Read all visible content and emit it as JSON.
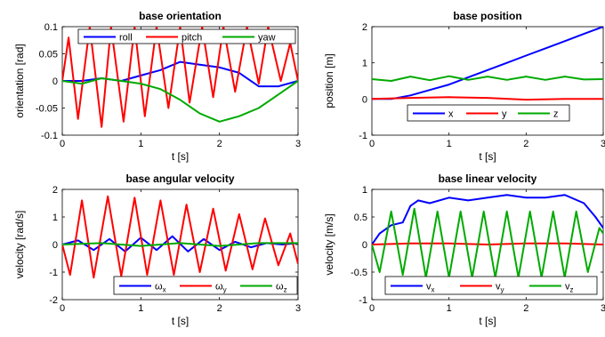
{
  "chart_data": [
    {
      "type": "line",
      "title": "base orientation",
      "xlabel": "t [s]",
      "ylabel": "orientation [rad]",
      "xlim": [
        0,
        3
      ],
      "ylim": [
        -0.1,
        0.1
      ],
      "xticks": [
        0,
        1,
        2,
        3
      ],
      "xtick_labels": [
        "0",
        "1",
        "2",
        "3"
      ],
      "yticks": [
        -0.1,
        -0.05,
        0,
        0.05,
        0.1
      ],
      "ytick_labels": [
        "-0.1",
        "-0.05",
        "0",
        "0.05",
        "0.1"
      ],
      "legend": "top",
      "grid": false,
      "series": [
        {
          "name": "roll",
          "color": "#0000ff",
          "x": [
            0,
            0.25,
            0.5,
            0.75,
            1.0,
            1.25,
            1.5,
            1.75,
            2.0,
            2.25,
            2.5,
            2.75,
            3.0
          ],
          "y": [
            0,
            0.0,
            0.005,
            0.0,
            0.01,
            0.02,
            0.035,
            0.03,
            0.025,
            0.015,
            -0.01,
            -0.01,
            0
          ]
        },
        {
          "name": "pitch",
          "color": "#ff0000",
          "x": [
            0,
            0.08,
            0.2,
            0.35,
            0.5,
            0.62,
            0.78,
            0.92,
            1.05,
            1.2,
            1.35,
            1.5,
            1.62,
            1.78,
            1.92,
            2.05,
            2.2,
            2.35,
            2.5,
            2.62,
            2.78,
            2.9,
            3.0
          ],
          "y": [
            0,
            0.08,
            -0.07,
            0.1,
            -0.085,
            0.1,
            -0.075,
            0.1,
            -0.065,
            0.1,
            -0.05,
            0.1,
            -0.04,
            0.1,
            -0.03,
            0.1,
            -0.02,
            0.1,
            -0.005,
            0.1,
            0.0,
            0.07,
            0
          ]
        },
        {
          "name": "yaw",
          "color": "#00aa00",
          "x": [
            0,
            0.25,
            0.5,
            0.75,
            1.0,
            1.25,
            1.5,
            1.75,
            2.0,
            2.25,
            2.5,
            2.75,
            3.0
          ],
          "y": [
            0,
            -0.005,
            0.005,
            0.0,
            -0.005,
            -0.015,
            -0.035,
            -0.06,
            -0.075,
            -0.065,
            -0.05,
            -0.025,
            0
          ]
        }
      ]
    },
    {
      "type": "line",
      "title": "base position",
      "xlabel": "t [s]",
      "ylabel": "position [m]",
      "xlim": [
        0,
        3
      ],
      "ylim": [
        -1,
        2
      ],
      "xticks": [
        0,
        1,
        2,
        3
      ],
      "xtick_labels": [
        "0",
        "1",
        "2",
        "3"
      ],
      "yticks": [
        -1,
        0,
        1,
        2
      ],
      "ytick_labels": [
        "-1",
        "0",
        "1",
        "2"
      ],
      "legend": "bottom",
      "grid": false,
      "series": [
        {
          "name": "x",
          "color": "#0000ff",
          "x": [
            0,
            0.25,
            0.5,
            0.75,
            1.0,
            1.25,
            1.5,
            1.75,
            2.0,
            2.25,
            2.5,
            2.75,
            3.0
          ],
          "y": [
            0,
            0.0,
            0.1,
            0.25,
            0.4,
            0.6,
            0.8,
            1.0,
            1.2,
            1.4,
            1.6,
            1.8,
            2.0
          ]
        },
        {
          "name": "y",
          "color": "#ff0000",
          "x": [
            0,
            0.5,
            1.0,
            1.5,
            2.0,
            2.5,
            3.0
          ],
          "y": [
            0,
            0.03,
            0.05,
            0.03,
            -0.02,
            0.0,
            0.0
          ]
        },
        {
          "name": "z",
          "color": "#00aa00",
          "x": [
            0,
            0.25,
            0.5,
            0.75,
            1.0,
            1.25,
            1.5,
            1.75,
            2.0,
            2.25,
            2.5,
            2.75,
            3.0
          ],
          "y": [
            0.55,
            0.5,
            0.62,
            0.52,
            0.63,
            0.53,
            0.62,
            0.53,
            0.62,
            0.53,
            0.62,
            0.54,
            0.55
          ]
        }
      ]
    },
    {
      "type": "line",
      "title": "base angular velocity",
      "xlabel": "t [s]",
      "ylabel": "velocity [rad/s]",
      "xlim": [
        0,
        3
      ],
      "ylim": [
        -2,
        2
      ],
      "xticks": [
        0,
        1,
        2,
        3
      ],
      "xtick_labels": [
        "0",
        "1",
        "2",
        "3"
      ],
      "yticks": [
        -2,
        -1,
        0,
        1,
        2
      ],
      "ytick_labels": [
        "-2",
        "-1",
        "0",
        "1",
        "2"
      ],
      "legend": "bottom",
      "grid": false,
      "series": [
        {
          "name": "ωx",
          "color": "#0000ff",
          "x": [
            0,
            0.2,
            0.4,
            0.6,
            0.8,
            1.0,
            1.2,
            1.4,
            1.6,
            1.8,
            2.0,
            2.2,
            2.4,
            2.6,
            2.8,
            3.0
          ],
          "y": [
            0,
            0.15,
            -0.2,
            0.2,
            -0.25,
            0.25,
            -0.2,
            0.3,
            -0.25,
            0.2,
            -0.2,
            0.1,
            -0.1,
            0.05,
            0.0,
            0.05
          ]
        },
        {
          "name": "ωy",
          "color": "#ff0000",
          "x": [
            0,
            0.1,
            0.25,
            0.4,
            0.58,
            0.75,
            0.92,
            1.08,
            1.25,
            1.42,
            1.58,
            1.75,
            1.92,
            2.08,
            2.25,
            2.42,
            2.58,
            2.75,
            2.9,
            3.0
          ],
          "y": [
            0,
            -1.1,
            1.6,
            -1.2,
            1.75,
            -1.15,
            1.7,
            -1.1,
            1.6,
            -1.1,
            1.45,
            -1.0,
            1.3,
            -0.95,
            1.1,
            -0.9,
            0.95,
            -0.75,
            0.4,
            -0.7
          ]
        },
        {
          "name": "ωz",
          "color": "#00aa00",
          "x": [
            0,
            0.5,
            1.0,
            1.5,
            2.0,
            2.5,
            3.0
          ],
          "y": [
            0,
            0.05,
            -0.05,
            0.05,
            -0.05,
            0.05,
            0.05
          ]
        }
      ]
    },
    {
      "type": "line",
      "title": "base linear velocity",
      "xlabel": "t [s]",
      "ylabel": "velocity [m/s]",
      "xlim": [
        0,
        3
      ],
      "ylim": [
        -1,
        1
      ],
      "xticks": [
        0,
        1,
        2,
        3
      ],
      "xtick_labels": [
        "0",
        "1",
        "2",
        "3"
      ],
      "yticks": [
        -1,
        -0.5,
        0,
        0.5,
        1
      ],
      "ytick_labels": [
        "-1",
        "-0.5",
        "0",
        "0.5",
        "1"
      ],
      "legend": "bottom",
      "grid": false,
      "series": [
        {
          "name": "vx",
          "color": "#0000ff",
          "x": [
            0,
            0.1,
            0.25,
            0.4,
            0.5,
            0.6,
            0.75,
            1.0,
            1.25,
            1.5,
            1.75,
            2.0,
            2.25,
            2.5,
            2.75,
            2.9,
            3.0
          ],
          "y": [
            0,
            0.2,
            0.35,
            0.4,
            0.7,
            0.8,
            0.75,
            0.85,
            0.8,
            0.85,
            0.9,
            0.85,
            0.85,
            0.9,
            0.75,
            0.5,
            0.3
          ]
        },
        {
          "name": "vy",
          "color": "#ff0000",
          "x": [
            0,
            0.5,
            1.0,
            1.5,
            2.0,
            2.5,
            3.0
          ],
          "y": [
            0,
            0.02,
            0.02,
            0.0,
            0.02,
            0.02,
            0.0
          ]
        },
        {
          "name": "vz",
          "color": "#00aa00",
          "x": [
            0,
            0.1,
            0.25,
            0.4,
            0.55,
            0.7,
            0.85,
            1.0,
            1.15,
            1.3,
            1.45,
            1.6,
            1.75,
            1.9,
            2.05,
            2.2,
            2.35,
            2.5,
            2.65,
            2.8,
            2.95,
            3.0
          ],
          "y": [
            0,
            -0.5,
            0.6,
            -0.55,
            0.65,
            -0.6,
            0.6,
            -0.6,
            0.6,
            -0.6,
            0.6,
            -0.6,
            0.6,
            -0.6,
            0.6,
            -0.6,
            0.6,
            -0.6,
            0.6,
            -0.5,
            0.3,
            0.2
          ]
        }
      ]
    }
  ]
}
